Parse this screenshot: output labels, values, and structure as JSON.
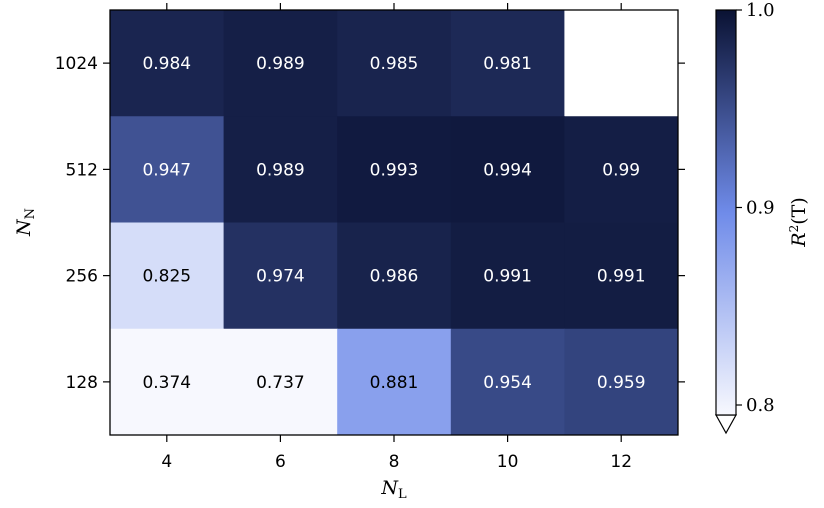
{
  "chart_data": {
    "type": "heatmap",
    "xlabel": "N",
    "xlabel_sub": "L",
    "ylabel": "N",
    "ylabel_sub": "N",
    "x_categories": [
      "4",
      "6",
      "8",
      "10",
      "12"
    ],
    "y_categories": [
      "1024",
      "512",
      "256",
      "128"
    ],
    "values": [
      [
        0.984,
        0.989,
        0.985,
        0.981,
        null
      ],
      [
        0.947,
        0.989,
        0.993,
        0.994,
        0.99
      ],
      [
        0.825,
        0.974,
        0.986,
        0.991,
        0.991
      ],
      [
        0.374,
        0.737,
        0.881,
        0.954,
        0.959
      ]
    ],
    "colorbar": {
      "label": "R",
      "label_sup": "2",
      "label_arg": "(T)",
      "ticks": [
        "0.8",
        "0.9",
        "1.0"
      ],
      "extend": "min"
    },
    "colormap": {
      "light": "#f7f8fe",
      "mid": "#6f8be9",
      "dark": "#0a1233"
    }
  }
}
